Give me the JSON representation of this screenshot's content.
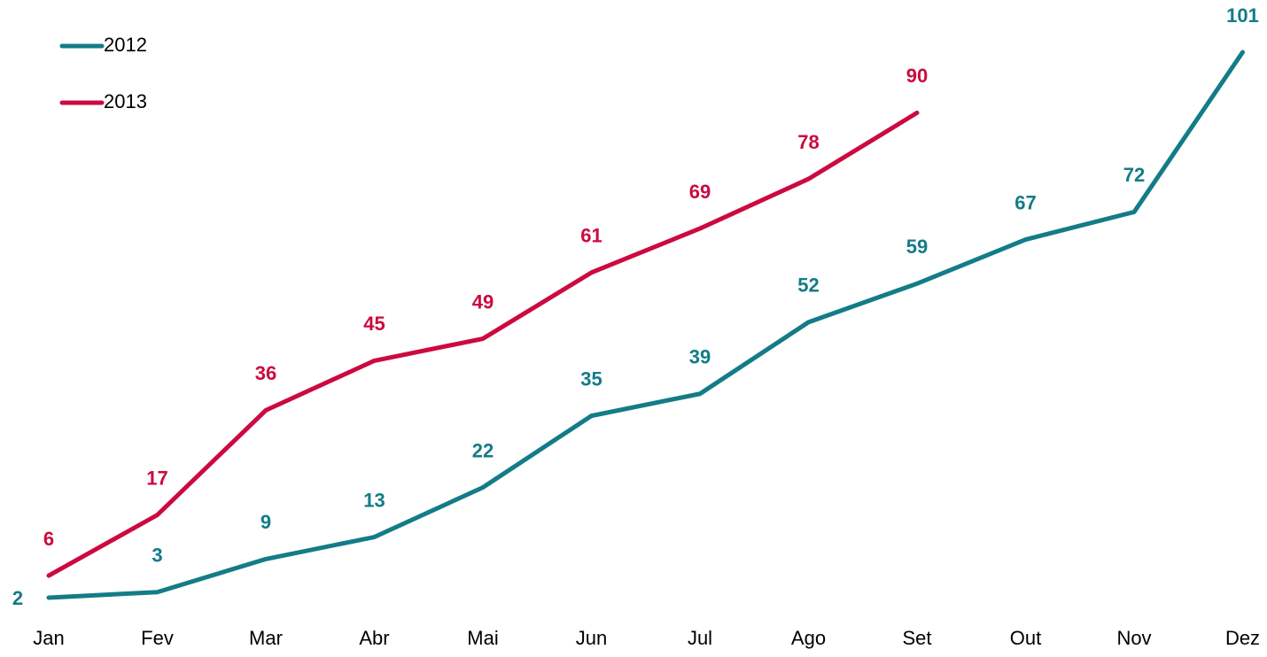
{
  "chart_data": {
    "type": "line",
    "categories": [
      "Jan",
      "Fev",
      "Mar",
      "Abr",
      "Mai",
      "Jun",
      "Jul",
      "Ago",
      "Set",
      "Out",
      "Nov",
      "Dez"
    ],
    "series": [
      {
        "name": "2012",
        "color": "#137c87",
        "values": [
          2,
          3,
          9,
          13,
          22,
          35,
          39,
          52,
          59,
          67,
          72,
          101
        ]
      },
      {
        "name": "2013",
        "color": "#cc0a3f",
        "values": [
          6,
          17,
          36,
          45,
          49,
          61,
          69,
          78,
          90,
          null,
          null,
          null
        ]
      }
    ],
    "legend": "upper left"
  }
}
